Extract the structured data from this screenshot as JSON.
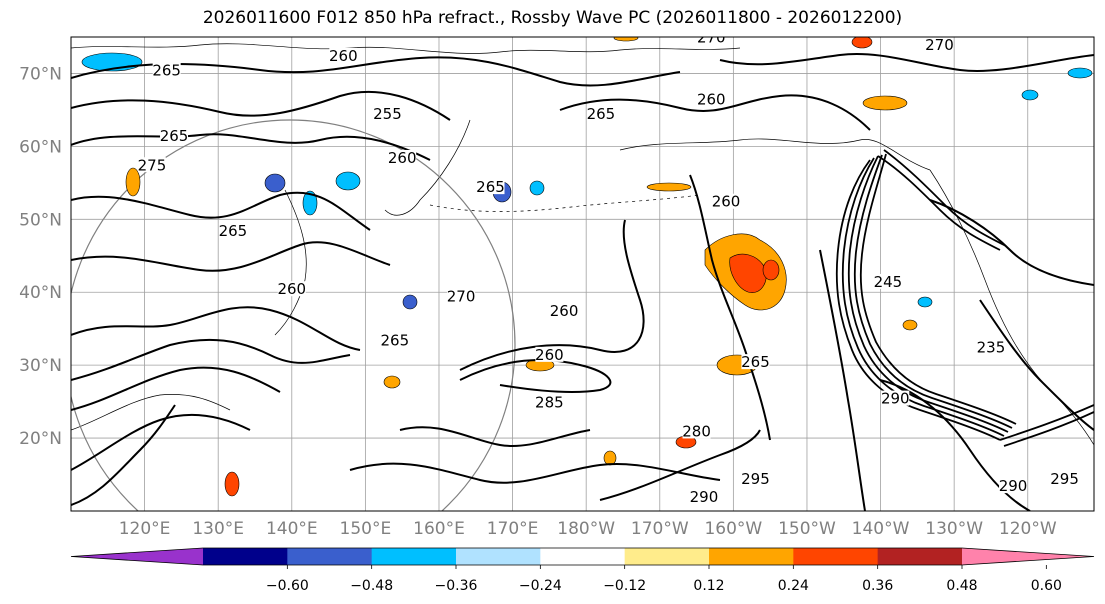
{
  "title": "2026011600 F012 850 hPa refract., Rossby Wave PC (2026011800 - 2026012200)",
  "lat_labels": [
    "70°N",
    "60°N",
    "50°N",
    "40°N",
    "30°N",
    "20°N"
  ],
  "lat_values": [
    70,
    60,
    50,
    40,
    30,
    20
  ],
  "lon_labels": [
    "120°E",
    "130°E",
    "140°E",
    "150°E",
    "160°E",
    "170°E",
    "180°W",
    "170°W",
    "160°W",
    "150°W",
    "140°W",
    "130°W",
    "120°W"
  ],
  "lon_values": [
    120,
    130,
    140,
    150,
    160,
    170,
    180,
    190,
    200,
    210,
    220,
    230,
    240
  ],
  "extent": {
    "lon_min": 110,
    "lon_max": 249,
    "lat_min": 10,
    "lat_max": 75
  },
  "colorbar": {
    "ticks": [
      "−0.60",
      "−0.48",
      "−0.36",
      "−0.24",
      "−0.12",
      "0.12",
      "0.24",
      "0.36",
      "0.48",
      "0.60"
    ],
    "colors": [
      "#9932cc",
      "#00008b",
      "#3a5fcd",
      "#00bfff",
      "#b0e2ff",
      "#ffffff",
      "#ffec8b",
      "#ffa500",
      "#ff4500",
      "#b22222",
      "#ff82ab"
    ]
  },
  "contour_labels": [
    {
      "text": "265",
      "lon": 123,
      "lat": 70
    },
    {
      "text": "260",
      "lon": 147,
      "lat": 72
    },
    {
      "text": "270",
      "lon": 197,
      "lat": 74.5
    },
    {
      "text": "270",
      "lon": 228,
      "lat": 73.5
    },
    {
      "text": "255",
      "lon": 153,
      "lat": 64
    },
    {
      "text": "265",
      "lon": 124,
      "lat": 61
    },
    {
      "text": "265",
      "lon": 182,
      "lat": 64
    },
    {
      "text": "260",
      "lon": 197,
      "lat": 66
    },
    {
      "text": "275",
      "lon": 121,
      "lat": 57
    },
    {
      "text": "260",
      "lon": 155,
      "lat": 58
    },
    {
      "text": "265",
      "lon": 167,
      "lat": 54
    },
    {
      "text": "265",
      "lon": 132,
      "lat": 48
    },
    {
      "text": "260",
      "lon": 199,
      "lat": 52
    },
    {
      "text": "260",
      "lon": 140,
      "lat": 40
    },
    {
      "text": "270",
      "lon": 163,
      "lat": 39
    },
    {
      "text": "260",
      "lon": 177,
      "lat": 37
    },
    {
      "text": "265",
      "lon": 154,
      "lat": 33
    },
    {
      "text": "245",
      "lon": 221,
      "lat": 41
    },
    {
      "text": "260",
      "lon": 175,
      "lat": 31
    },
    {
      "text": "265",
      "lon": 203,
      "lat": 30
    },
    {
      "text": "235",
      "lon": 235,
      "lat": 32
    },
    {
      "text": "285",
      "lon": 175,
      "lat": 24.5
    },
    {
      "text": "280",
      "lon": 195,
      "lat": 20.5
    },
    {
      "text": "290",
      "lon": 222,
      "lat": 25
    },
    {
      "text": "290",
      "lon": 196,
      "lat": 11.5
    },
    {
      "text": "295",
      "lon": 203,
      "lat": 14
    },
    {
      "text": "290",
      "lon": 238,
      "lat": 13
    },
    {
      "text": "295",
      "lon": 245,
      "lat": 14
    }
  ]
}
